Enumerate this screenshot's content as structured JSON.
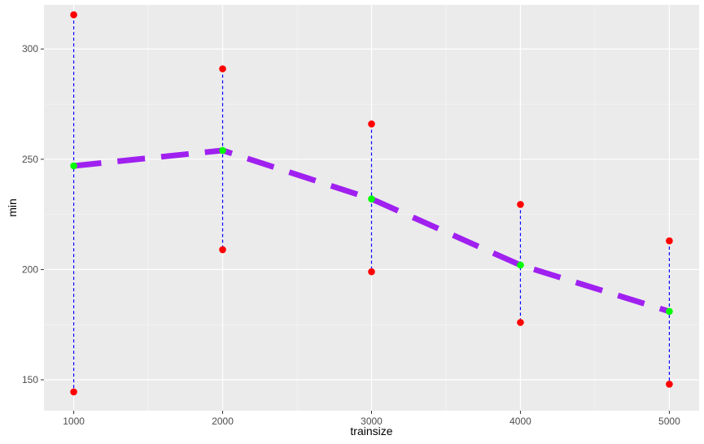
{
  "chart_data": {
    "type": "line",
    "xlabel": "trainsize",
    "ylabel": "min",
    "xlim": [
      800,
      5200
    ],
    "ylim": [
      136,
      320
    ],
    "x_ticks": [
      1000,
      2000,
      3000,
      4000,
      5000
    ],
    "x_tick_labels": [
      "1000",
      "2000",
      "3000",
      "4000",
      "5000"
    ],
    "y_ticks": [
      150,
      200,
      250,
      300
    ],
    "y_tick_labels": [
      "150",
      "200",
      "250",
      "300"
    ],
    "grid": true,
    "legend": "none",
    "x": [
      1000,
      2000,
      3000,
      4000,
      5000
    ],
    "series": [
      {
        "role": "mean",
        "values": [
          247,
          254,
          232,
          202,
          181
        ],
        "color": "#a020f0",
        "style": "dashed-thick",
        "marker_color": "#00ff00"
      },
      {
        "role": "max",
        "values": [
          315.5,
          291,
          266,
          229.5,
          213
        ],
        "color": "#ff0000"
      },
      {
        "role": "min",
        "values": [
          144.5,
          209,
          199,
          176,
          148
        ],
        "color": "#ff0000"
      }
    ],
    "range_line_color": "#0000ff"
  },
  "colors": {
    "panel_bg": "#ebebeb",
    "grid_major": "#ffffff",
    "grid_minor": "#f7f7f7"
  }
}
